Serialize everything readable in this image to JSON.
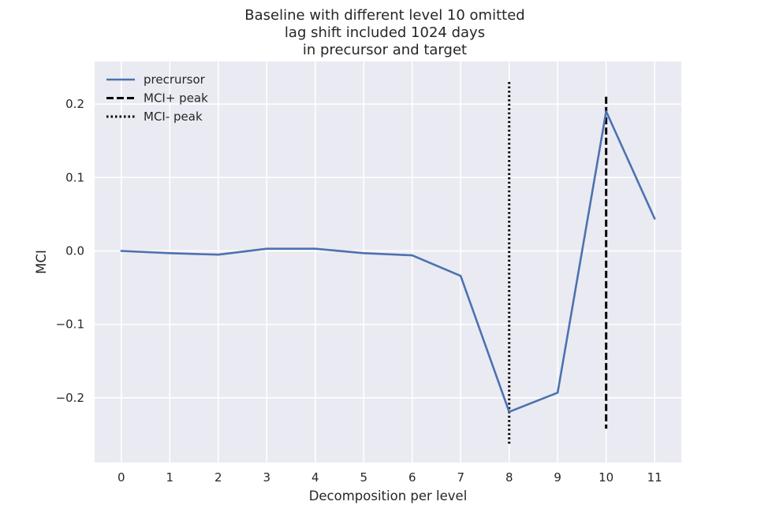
{
  "chart_data": {
    "type": "line",
    "title": [
      "Baseline with different level 10 omitted",
      "lag shift included 1024 days",
      "in precursor and target"
    ],
    "xlabel": "Decomposition per level",
    "ylabel": "MCI",
    "xlim": [
      -0.55,
      11.55
    ],
    "ylim": [
      -0.288,
      0.258
    ],
    "x_ticks": [
      0,
      1,
      2,
      3,
      4,
      5,
      6,
      7,
      8,
      9,
      10,
      11
    ],
    "x_tick_labels": [
      "0",
      "1",
      "2",
      "3",
      "4",
      "5",
      "6",
      "7",
      "8",
      "9",
      "10",
      "11"
    ],
    "y_ticks": [
      -0.2,
      -0.1,
      0.0,
      0.1,
      0.2
    ],
    "y_tick_labels": [
      "−0.2",
      "−0.1",
      "0.0",
      "0.1",
      "0.2"
    ],
    "grid": true,
    "legend_position": "top-left",
    "series": [
      {
        "name": "precrursor",
        "color": "#4c72b0",
        "style": "solid",
        "x": [
          0,
          1,
          2,
          3,
          4,
          5,
          6,
          7,
          8,
          9,
          10,
          11
        ],
        "y": [
          0.0,
          -0.003,
          -0.005,
          0.003,
          0.003,
          -0.003,
          -0.006,
          -0.034,
          -0.219,
          -0.193,
          0.19,
          0.044
        ]
      }
    ],
    "vlines": [
      {
        "name": "MCI+ peak",
        "x": 10,
        "ymin": -0.242,
        "ymax": 0.21,
        "style": "dashed",
        "color": "#000000"
      },
      {
        "name": "MCI- peak",
        "x": 8,
        "ymin": -0.264,
        "ymax": 0.23,
        "style": "dotted",
        "color": "#000000"
      }
    ]
  }
}
